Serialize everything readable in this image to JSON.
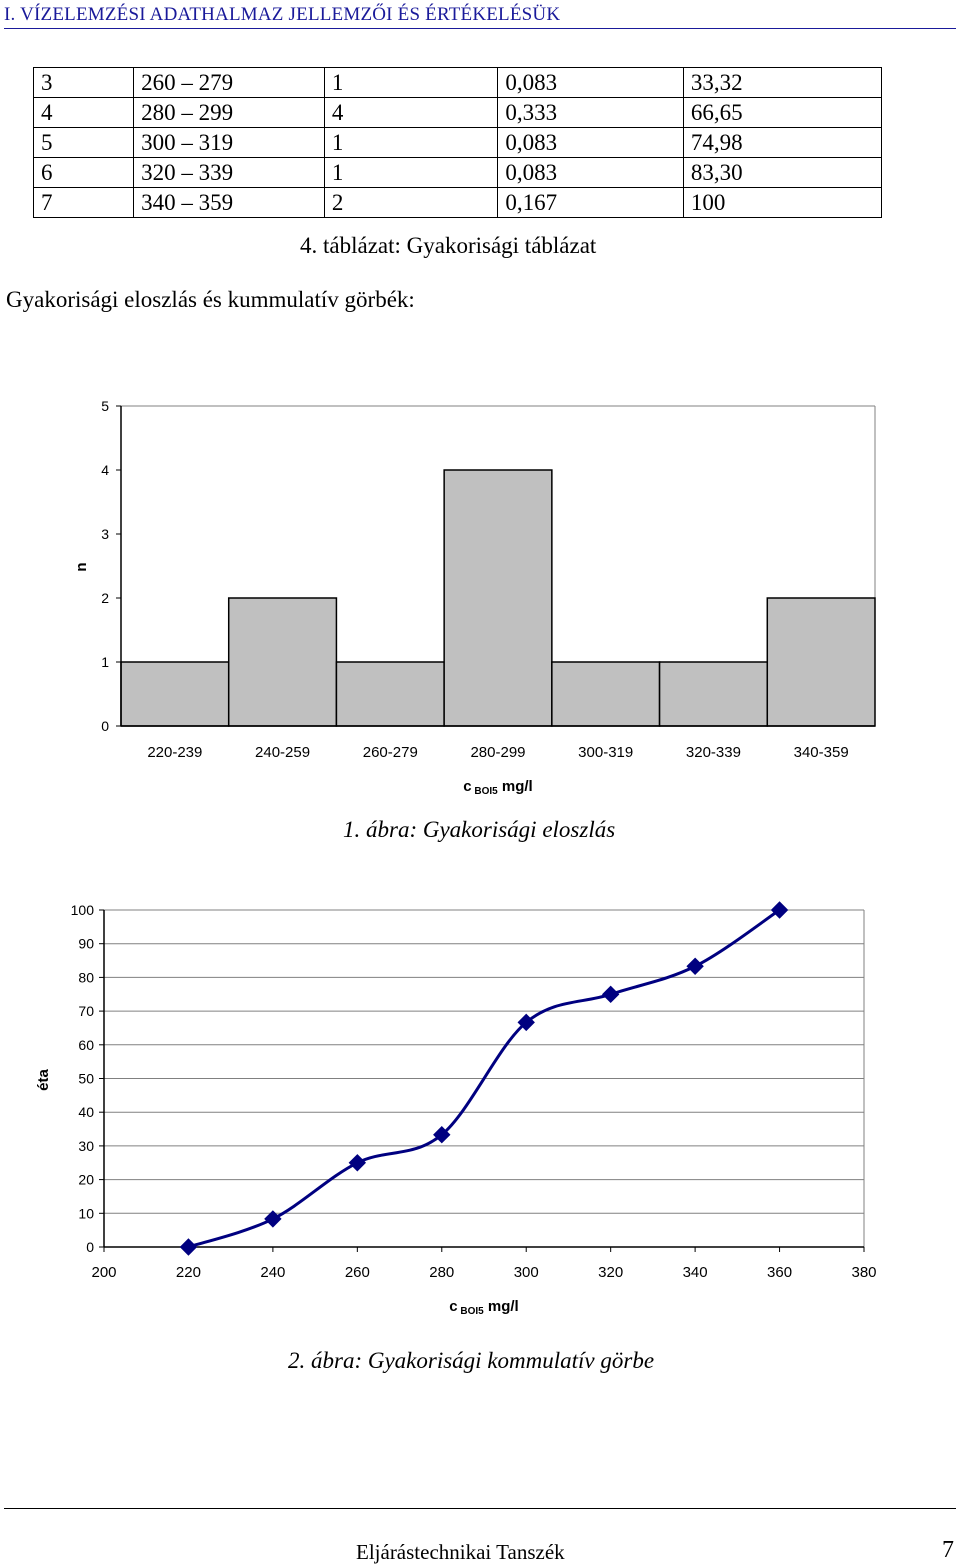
{
  "header": {
    "title": "I. VÍZELEMZÉSI ADATHALMAZ JELLEMZŐI ÉS ÉRTÉKELÉSÜK"
  },
  "table": {
    "rows": [
      [
        "3",
        "260 – 279",
        "1",
        "0,083",
        "33,32"
      ],
      [
        "4",
        "280 – 299",
        "4",
        "0,333",
        "66,65"
      ],
      [
        "5",
        "300 – 319",
        "1",
        "0,083",
        "74,98"
      ],
      [
        "6",
        "320 – 339",
        "1",
        "0,083",
        "83,30"
      ],
      [
        "7",
        "340 – 359",
        "2",
        "0,167",
        "100"
      ]
    ],
    "caption": "4.  táblázat: Gyakorisági táblázat"
  },
  "body_text": "Gyakorisági eloszlás és kummulatív görbék:",
  "chart_data": [
    {
      "type": "bar",
      "categories": [
        "220-239",
        "240-259",
        "260-279",
        "280-299",
        "300-319",
        "320-339",
        "340-359"
      ],
      "values": [
        1,
        2,
        1,
        4,
        1,
        1,
        2
      ],
      "ylabel": "n",
      "xlabel_main": "c",
      "xlabel_sub": "BOI5",
      "xlabel_unit": " mg/l",
      "ylim": [
        0,
        5
      ],
      "yticks": [
        "0",
        "1",
        "2",
        "3",
        "4",
        "5"
      ],
      "bar_color": "#c0c0c0",
      "grid": false,
      "caption": "1.  ábra: Gyakorisági eloszlás"
    },
    {
      "type": "line",
      "x": [
        220,
        240,
        260,
        280,
        300,
        320,
        340,
        360
      ],
      "y": [
        0,
        8.33,
        24.99,
        33.32,
        66.65,
        74.98,
        83.3,
        100
      ],
      "ylabel": "éta",
      "xlabel_main": "c",
      "xlabel_sub": "BOI5",
      "xlabel_unit": " mg/l",
      "xlim": [
        200,
        380
      ],
      "ylim": [
        0,
        100
      ],
      "xticks": [
        "200",
        "220",
        "240",
        "260",
        "280",
        "300",
        "320",
        "340",
        "360",
        "380"
      ],
      "yticks": [
        "0",
        "10",
        "20",
        "30",
        "40",
        "50",
        "60",
        "70",
        "80",
        "90",
        "100"
      ],
      "line_color": "#000080",
      "marker": "diamond",
      "grid": true,
      "caption": "2.  ábra: Gyakorisági kommulatív görbe"
    }
  ],
  "footer": {
    "text": "Eljárástechnikai Tanszék",
    "page": "7"
  }
}
